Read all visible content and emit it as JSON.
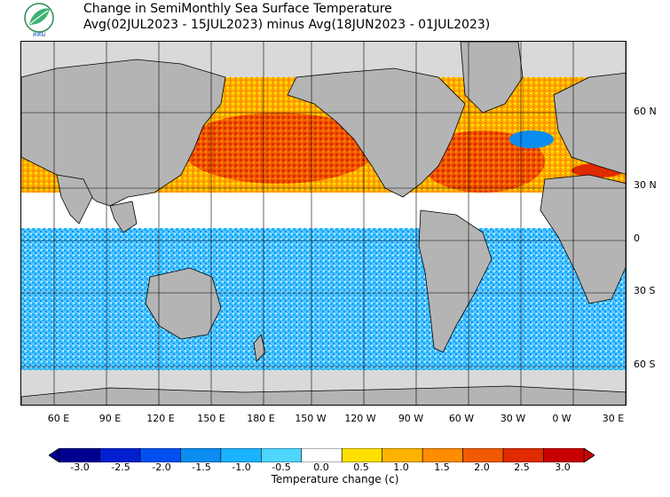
{
  "title": {
    "line1": "Change in SemiMonthly Sea Surface Temperature",
    "line2": "Avg(02JUL2023 - 15JUL2023) minus Avg(18JUN2023 - 01JUL2023)"
  },
  "logo": {
    "text": "ลสม",
    "icon": "leaf-logo-icon"
  },
  "lat_labels": [
    "60 N",
    "30 N",
    "0",
    "30 S",
    "60 S"
  ],
  "lon_labels": [
    "60 E",
    "90 E",
    "120 E",
    "150 E",
    "180 E",
    "150 W",
    "120 W",
    "90 W",
    "60 W",
    "30 W",
    "0 W",
    "30 E"
  ],
  "colorbar": {
    "label": "Temperature change  (c)",
    "ticks": [
      "-3.0",
      "-2.5",
      "-2.0",
      "-1.5",
      "-1.0",
      "-0.5",
      "0.0",
      "0.5",
      "1.0",
      "1.5",
      "2.0",
      "2.5",
      "3.0"
    ],
    "colors": [
      "#00008f",
      "#0020d0",
      "#0050f0",
      "#0a8cf0",
      "#1ab3ff",
      "#4fd6ff",
      "#ffffff",
      "#ffe000",
      "#ffb300",
      "#ff8c00",
      "#f05a00",
      "#e02a00",
      "#c80000"
    ]
  },
  "colors": {
    "land": "#b4b4b4",
    "ice": "#d9d9d9"
  }
}
